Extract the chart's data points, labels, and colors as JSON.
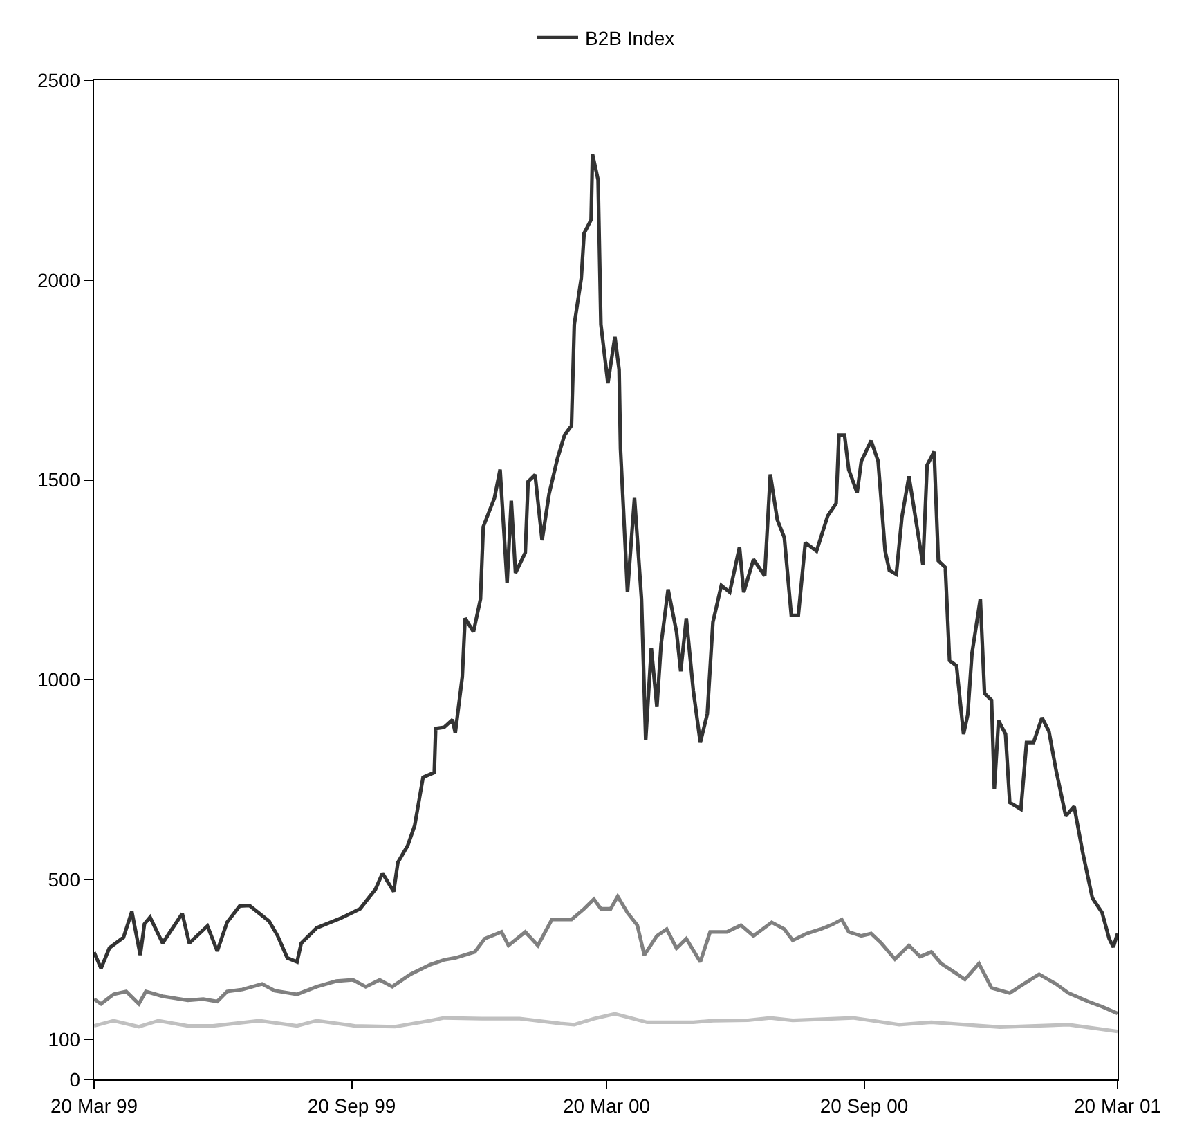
{
  "chart_data": {
    "type": "line",
    "legend": "top",
    "grid": false,
    "line_style": "solid",
    "marker": "none",
    "xlim": [
      "1999-03-20",
      "2001-03-20"
    ],
    "xticks": [
      {
        "value": "1999-03-20",
        "label": "20 Mar 99"
      },
      {
        "value": "1999-09-20",
        "label": "20 Sep 99"
      },
      {
        "value": "2000-03-20",
        "label": "20 Mar 00"
      },
      {
        "value": "2000-09-20",
        "label": "20 Sep 00"
      },
      {
        "value": "2001-03-20",
        "label": "20 Mar 01"
      }
    ],
    "ylim": [
      0,
      2500
    ],
    "yticks": [
      0,
      100,
      500,
      1000,
      1500,
      2000,
      2500
    ],
    "series": [
      {
        "name": "B2B Index",
        "color": "#333333",
        "x": [
          "1999-03-20",
          "1999-03-25",
          "1999-03-31",
          "1999-04-10",
          "1999-04-16",
          "1999-04-22",
          "1999-04-25",
          "1999-04-29",
          "1999-05-08",
          "1999-05-22",
          "1999-05-27",
          "1999-06-09",
          "1999-06-16",
          "1999-06-23",
          "1999-07-02",
          "1999-07-09",
          "1999-07-23",
          "1999-07-29",
          "1999-08-05",
          "1999-08-12",
          "1999-08-15",
          "1999-08-26",
          "1999-09-12",
          "1999-09-26",
          "1999-10-07",
          "1999-10-12",
          "1999-10-20",
          "1999-10-23",
          "1999-10-30",
          "1999-11-04",
          "1999-11-10",
          "1999-11-18",
          "1999-11-19",
          "1999-11-25",
          "1999-12-01",
          "1999-12-03",
          "1999-12-08",
          "1999-12-10",
          "1999-12-16",
          "1999-12-21",
          "1999-12-23",
          "1999-12-31",
          "2000-01-04",
          "2000-01-09",
          "2000-01-12",
          "2000-01-15",
          "2000-01-22",
          "2000-01-24",
          "2000-01-29",
          "2000-02-03",
          "2000-02-08",
          "2000-02-14",
          "2000-02-19",
          "2000-02-24",
          "2000-02-26",
          "2000-03-02",
          "2000-03-04",
          "2000-03-09",
          "2000-03-10",
          "2000-03-14",
          "2000-03-16",
          "2000-03-21",
          "2000-03-26",
          "2000-03-29",
          "2000-03-30",
          "2000-04-04",
          "2000-04-09",
          "2000-04-14",
          "2000-04-17",
          "2000-04-21",
          "2000-04-25",
          "2000-04-28",
          "2000-05-03",
          "2000-05-09",
          "2000-05-12",
          "2000-05-16",
          "2000-05-21",
          "2000-05-26",
          "2000-05-31",
          "2000-06-04",
          "2000-06-10",
          "2000-06-16",
          "2000-06-23",
          "2000-06-26",
          "2000-07-03",
          "2000-07-11",
          "2000-07-15",
          "2000-07-20",
          "2000-07-25",
          "2000-07-30",
          "2000-08-04",
          "2000-08-09",
          "2000-08-17",
          "2000-08-25",
          "2000-08-31",
          "2000-09-02",
          "2000-09-06",
          "2000-09-09",
          "2000-09-15",
          "2000-09-18",
          "2000-09-25",
          "2000-09-30",
          "2000-10-05",
          "2000-10-08",
          "2000-10-13",
          "2000-10-17",
          "2000-10-22",
          "2000-11-01",
          "2000-11-04",
          "2000-11-09",
          "2000-11-12",
          "2000-11-17",
          "2000-11-20",
          "2000-11-25",
          "2000-11-30",
          "2000-12-03",
          "2000-12-06",
          "2000-12-12",
          "2000-12-15",
          "2000-12-20",
          "2000-12-22",
          "2000-12-25",
          "2000-12-30",
          "2001-01-02",
          "2001-01-10",
          "2001-01-14",
          "2001-01-19",
          "2001-01-25",
          "2001-01-30",
          "2001-02-04",
          "2001-02-11",
          "2001-02-17",
          "2001-02-23",
          "2001-03-02",
          "2001-03-09",
          "2001-03-14",
          "2001-03-17",
          "2001-03-20"
        ],
        "values": [
          318,
          278,
          329,
          355,
          420,
          311,
          389,
          406,
          341,
          415,
          341,
          384,
          321,
          393,
          434,
          435,
          396,
          360,
          304,
          294,
          341,
          379,
          403,
          427,
          476,
          516,
          470,
          543,
          585,
          635,
          756,
          768,
          878,
          881,
          900,
          867,
          1007,
          1154,
          1120,
          1202,
          1383,
          1455,
          1526,
          1243,
          1448,
          1267,
          1318,
          1496,
          1513,
          1349,
          1465,
          1554,
          1612,
          1636,
          1889,
          2005,
          2117,
          2151,
          2315,
          2251,
          1889,
          1742,
          1858,
          1776,
          1578,
          1219,
          1455,
          1202,
          850,
          1079,
          932,
          1089,
          1226,
          1120,
          1021,
          1154,
          973,
          843,
          915,
          1144,
          1236,
          1219,
          1332,
          1219,
          1301,
          1260,
          1514,
          1400,
          1356,
          1161,
          1161,
          1343,
          1322,
          1410,
          1441,
          1612,
          1612,
          1526,
          1468,
          1547,
          1598,
          1547,
          1322,
          1274,
          1264,
          1407,
          1509,
          1288,
          1537,
          1571,
          1298,
          1281,
          1048,
          1035,
          864,
          912,
          1065,
          1202,
          966,
          949,
          727,
          898,
          864,
          693,
          676,
          843,
          843,
          905,
          871,
          775,
          659,
          683,
          570,
          454,
          417,
          352,
          331,
          365
        ]
      },
      {
        "color": "#808080",
        "x": [
          "1999-03-20",
          "1999-03-25",
          "1999-04-03",
          "1999-04-12",
          "1999-04-21",
          "1999-04-26",
          "1999-05-08",
          "1999-05-26",
          "1999-06-06",
          "1999-06-16",
          "1999-06-23",
          "1999-07-04",
          "1999-07-18",
          "1999-07-27",
          "1999-08-12",
          "1999-08-26",
          "1999-09-09",
          "1999-09-21",
          "1999-09-30",
          "1999-10-10",
          "1999-10-19",
          "1999-11-01",
          "1999-11-15",
          "1999-11-25",
          "1999-12-03",
          "1999-12-17",
          "1999-12-24",
          "2000-01-05",
          "2000-01-10",
          "2000-01-22",
          "2000-01-31",
          "2000-02-10",
          "2000-02-24",
          "2000-03-04",
          "2000-03-11",
          "2000-03-16",
          "2000-03-23",
          "2000-03-28",
          "2000-04-04",
          "2000-04-11",
          "2000-04-16",
          "2000-04-25",
          "2000-05-02",
          "2000-05-09",
          "2000-05-16",
          "2000-05-26",
          "2000-06-02",
          "2000-06-14",
          "2000-06-24",
          "2000-07-03",
          "2000-07-16",
          "2000-07-25",
          "2000-07-31",
          "2000-08-10",
          "2000-08-20",
          "2000-08-28",
          "2000-09-04",
          "2000-09-09",
          "2000-09-18",
          "2000-09-25",
          "2000-10-02",
          "2000-10-12",
          "2000-10-22",
          "2000-10-30",
          "2000-11-07",
          "2000-11-14",
          "2000-11-24",
          "2000-12-01",
          "2000-12-11",
          "2000-12-20",
          "2001-01-02",
          "2001-01-12",
          "2001-01-23",
          "2001-02-04",
          "2001-02-13",
          "2001-02-27",
          "2001-03-09",
          "2001-03-20"
        ],
        "values": [
          201,
          189,
          213,
          220,
          189,
          220,
          208,
          198,
          201,
          195,
          220,
          225,
          239,
          222,
          213,
          232,
          246,
          249,
          232,
          249,
          232,
          263,
          287,
          299,
          304,
          319,
          352,
          369,
          335,
          369,
          335,
          400,
          400,
          427,
          451,
          427,
          427,
          458,
          417,
          386,
          311,
          359,
          376,
          328,
          352,
          294,
          369,
          369,
          386,
          359,
          393,
          376,
          348,
          365,
          376,
          387,
          400,
          369,
          359,
          365,
          342,
          301,
          335,
          307,
          319,
          290,
          267,
          250,
          290,
          229,
          216,
          239,
          263,
          239,
          216,
          195,
          182,
          165
        ]
      },
      {
        "color": "#c0c0c0",
        "x": [
          "1999-03-20",
          "1999-04-03",
          "1999-04-21",
          "1999-05-05",
          "1999-05-26",
          "1999-06-13",
          "1999-07-16",
          "1999-08-12",
          "1999-08-26",
          "1999-09-22",
          "1999-10-21",
          "1999-11-15",
          "1999-11-25",
          "1999-12-22",
          "2000-01-18",
          "2000-02-16",
          "2000-02-26",
          "2000-03-11",
          "2000-03-26",
          "2000-04-18",
          "2000-05-21",
          "2000-06-04",
          "2000-06-29",
          "2000-07-15",
          "2000-07-31",
          "2000-09-12",
          "2000-10-15",
          "2000-11-07",
          "2000-12-26",
          "2001-02-13",
          "2001-03-20"
        ],
        "values": [
          134,
          147,
          132,
          147,
          134,
          134,
          147,
          134,
          147,
          134,
          132,
          147,
          154,
          152,
          152,
          140,
          137,
          152,
          164,
          143,
          143,
          147,
          148,
          154,
          148,
          154,
          137,
          143,
          131,
          137,
          120
        ]
      }
    ]
  }
}
